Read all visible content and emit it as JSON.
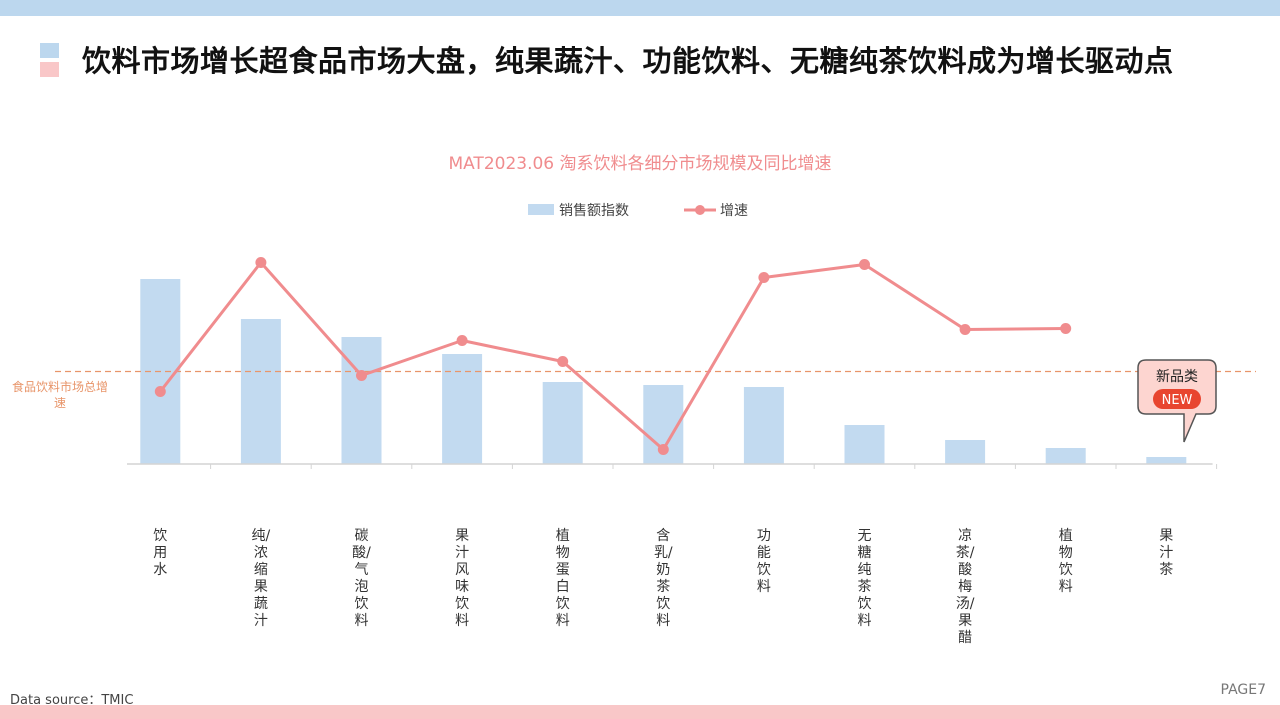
{
  "headline": "饮料市场增长超食品市场大盘，纯果蔬汁、功能饮料、无糖纯茶饮料成为增长驱动点",
  "footer": {
    "source": "Data source：TMIC",
    "page": "PAGE7"
  },
  "colors": {
    "bar": "#c2daf0",
    "line": "#f08c8e",
    "reference": "#e8956a",
    "title": "#f08c8e",
    "top_band": "#bcd7ee",
    "bottom_band": "#f9c7c8"
  },
  "badge": {
    "line1": "新品类",
    "line2": "NEW"
  },
  "chart_data": {
    "type": "bar",
    "title": "MAT2023.06  淘系饮料各细分市场规模及同比增速",
    "categories": [
      "饮用水",
      "纯/浓缩果蔬汁",
      "碳酸/气泡饮料",
      "果汁风味饮料",
      "植物蛋白饮料",
      "含乳/奶茶饮料",
      "功能饮料",
      "无糖纯茶饮料",
      "凉茶/酸梅汤/果醋",
      "植物饮料",
      "果汁茶"
    ],
    "series": [
      {
        "name": "销售额指数",
        "type": "bar",
        "values": [
          185,
          145,
          127,
          110,
          82,
          79,
          77,
          39,
          24,
          16,
          7
        ]
      },
      {
        "name": "增速",
        "type": "line",
        "values": [
          72,
          201,
          88,
          123,
          102,
          14,
          186,
          199,
          134,
          135,
          null
        ]
      }
    ],
    "reference_line": {
      "label": "食品饮料市场总增速",
      "value": 92
    },
    "legend_position": "top-center",
    "grid": false
  }
}
